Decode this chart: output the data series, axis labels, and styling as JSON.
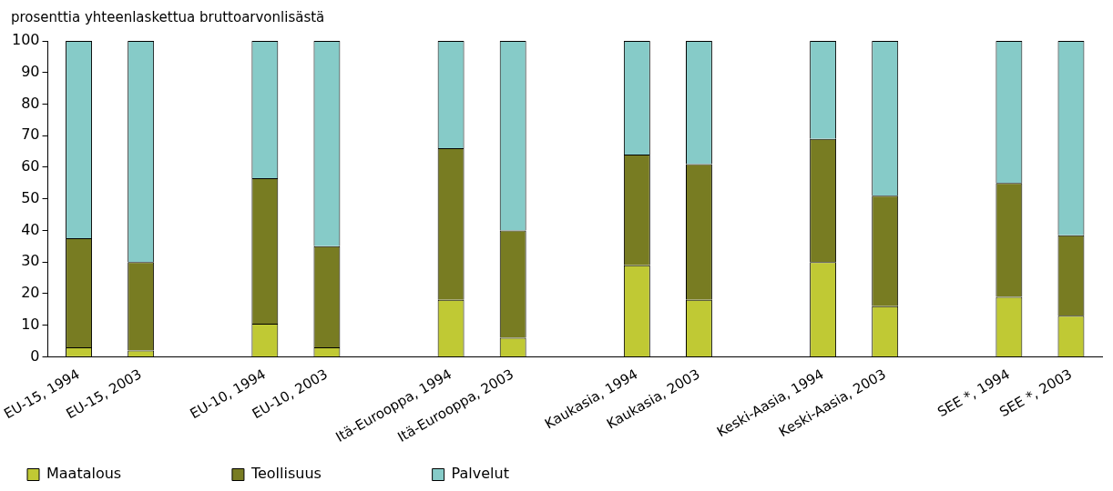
{
  "chart_data": {
    "type": "bar",
    "ylabel": "prosenttia yhteenlaskettua bruttoarvonlisästä",
    "stacked": true,
    "legend": "bottom",
    "grid": false,
    "categories": [
      "EU-15, 1994",
      "EU-15, 2003",
      null,
      "EU-10, 1994",
      "EU-10, 2003",
      null,
      "Itä-Eurooppa, 1994",
      "Itä-Eurooppa, 2003",
      null,
      "Kaukasia, 1994",
      "Kaukasia, 2003",
      null,
      "Keski-Aasia, 1994",
      "Keski-Aasia, 2003",
      null,
      "SEE *, 1994",
      "SEE *, 2003"
    ],
    "series": [
      {
        "name": "Maatalous",
        "color": "#c0c934",
        "values": [
          3,
          2,
          null,
          10.5,
          3,
          null,
          18,
          6,
          null,
          29,
          18,
          null,
          30,
          16,
          null,
          19,
          13
        ]
      },
      {
        "name": "Teollisuus",
        "color": "#787c22",
        "values": [
          34.5,
          28,
          null,
          46,
          32,
          null,
          48,
          34,
          null,
          35,
          43,
          null,
          39,
          35,
          null,
          36,
          25.5
        ]
      },
      {
        "name": "Palvelut",
        "color": "#86cbc8",
        "values": [
          62.5,
          70,
          null,
          43.5,
          65,
          null,
          34,
          60,
          null,
          36,
          39,
          null,
          31,
          49,
          null,
          45,
          61.5
        ]
      }
    ],
    "ylim": [
      0,
      100
    ],
    "yticks": [
      0,
      10,
      20,
      30,
      40,
      50,
      60,
      70,
      80,
      90,
      100
    ]
  }
}
